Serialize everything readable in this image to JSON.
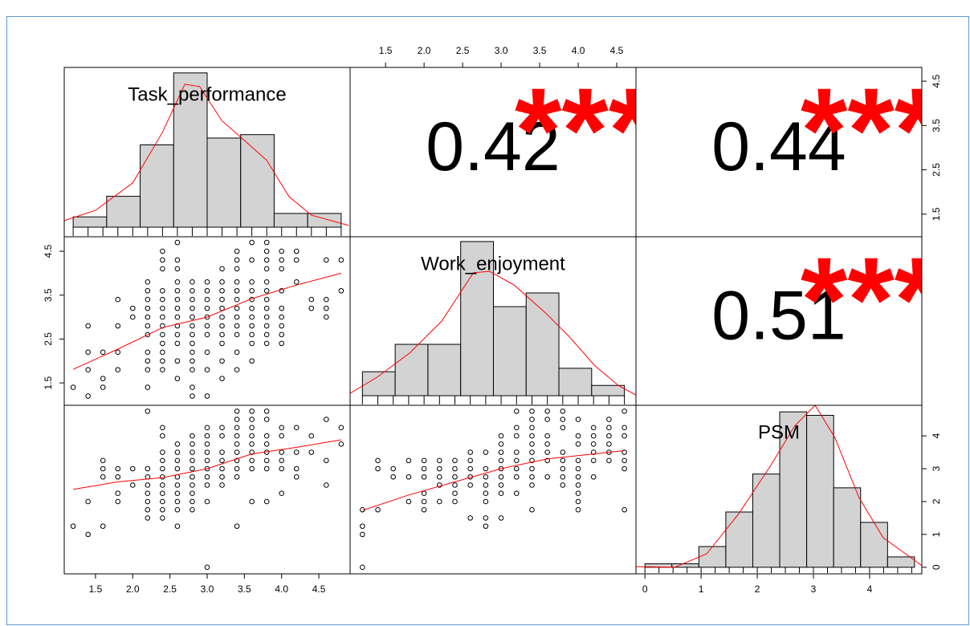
{
  "chart_data": {
    "type": "pairs",
    "variables": [
      "Task_performance",
      "Work_enjoyment",
      "PSM"
    ],
    "columns": [
      {
        "xlim": [
          1.08,
          4.92
        ],
        "axis": "bottom",
        "xticks": [
          1.5,
          {
            "value": 2,
            "label": "2.0"
          },
          2.5,
          {
            "value": 3,
            "label": "3.0"
          },
          3.5,
          {
            "value": 4,
            "label": "4.0"
          },
          4.5
        ]
      },
      {
        "xlim": [
          1.04,
          4.75
        ],
        "axis": "top",
        "xticks": [
          1.5,
          {
            "value": 2,
            "label": "2.0"
          },
          2.5,
          {
            "value": 3,
            "label": "3.0"
          },
          3.5,
          {
            "value": 4,
            "label": "4.0"
          },
          4.5
        ]
      },
      {
        "xlim": [
          -0.16,
          4.93
        ],
        "axis": "bottom",
        "xticks": [
          0,
          1,
          2,
          3,
          4
        ]
      }
    ],
    "rows": [
      {
        "ylim": [
          0.99,
          4.81
        ],
        "axis": "right",
        "yticks": [
          1.5,
          2.5,
          3.5,
          4.5
        ]
      },
      {
        "ylim": [
          0.99,
          4.83
        ],
        "axis": "left",
        "yticks": [
          1.5,
          2.5,
          3.5,
          4.5
        ]
      },
      {
        "ylim": [
          -0.2,
          4.93
        ],
        "axis": "right",
        "yticks": [
          0,
          1,
          2,
          3,
          4
        ]
      }
    ],
    "bar_color": "#d3d3d3",
    "line_color": "#ff0000",
    "star_color": "#ff0000",
    "panels": [
      {
        "type": "histogram",
        "bins": [
          1.2,
          1.65,
          2.1,
          2.55,
          3.0,
          3.45,
          3.9,
          4.35,
          4.8
        ],
        "counts": [
          3,
          9,
          24,
          45,
          26,
          27,
          4,
          4
        ],
        "count_lim": [
          -2.8,
          46.6
        ],
        "density": {
          "x": [
            1.08,
            1.5,
            2.0,
            2.4,
            2.7,
            2.9,
            3.2,
            3.5,
            3.8,
            4.1,
            4.4,
            4.9
          ],
          "y": [
            1.9,
            4.9,
            12.9,
            27.7,
            41.7,
            41,
            31,
            25.3,
            19.5,
            8.9,
            3.5,
            0.5
          ]
        },
        "rug": [
          1.2,
          1.4,
          1.6,
          1.8,
          2.0,
          2.2,
          2.4,
          2.6,
          2.8,
          3.0,
          3.2,
          3.4,
          3.6,
          3.8,
          4.0,
          4.2,
          4.4,
          4.6,
          4.8
        ]
      },
      {
        "type": "correlation",
        "value": 0.42,
        "stars": "***"
      },
      {
        "type": "correlation",
        "value": 0.44,
        "stars": "***"
      },
      {
        "type": "scatter",
        "x": [
          1.2,
          1.4,
          1.4,
          1.4,
          1.4,
          1.6,
          1.6,
          1.6,
          1.8,
          1.8,
          1.8,
          1.8,
          2.0,
          2.0,
          2.2,
          2.2,
          2.2,
          2.2,
          2.2,
          2.2,
          2.2,
          2.2,
          2.2,
          2.2,
          2.2,
          2.4,
          2.4,
          2.4,
          2.4,
          2.4,
          2.4,
          2.4,
          2.4,
          2.4,
          2.4,
          2.4,
          2.4,
          2.4,
          2.6,
          2.6,
          2.6,
          2.6,
          2.6,
          2.6,
          2.6,
          2.6,
          2.6,
          2.6,
          2.6,
          2.6,
          2.6,
          2.8,
          2.8,
          2.8,
          2.8,
          2.8,
          2.8,
          2.8,
          2.8,
          2.8,
          2.8,
          2.8,
          2.8,
          2.8,
          3.0,
          3.0,
          3.0,
          3.0,
          3.0,
          3.0,
          3.0,
          3.0,
          3.0,
          3.0,
          3.2,
          3.2,
          3.2,
          3.2,
          3.2,
          3.2,
          3.2,
          3.2,
          3.2,
          3.2,
          3.2,
          3.4,
          3.4,
          3.4,
          3.4,
          3.4,
          3.4,
          3.4,
          3.4,
          3.4,
          3.4,
          3.4,
          3.4,
          3.6,
          3.6,
          3.6,
          3.6,
          3.6,
          3.6,
          3.6,
          3.6,
          3.6,
          3.6,
          3.6,
          3.8,
          3.8,
          3.8,
          3.8,
          3.8,
          3.8,
          3.8,
          3.8,
          3.8,
          3.8,
          3.8,
          3.8,
          4.0,
          4.0,
          4.0,
          4.0,
          4.0,
          4.0,
          4.0,
          4.0,
          4.0,
          4.2,
          4.2,
          4.2,
          4.4,
          4.4,
          4.6,
          4.6,
          4.6,
          4.6,
          4.8,
          4.8
        ],
        "y": [
          1.4,
          2.8,
          2.2,
          1.8,
          1.2,
          2.2,
          1.6,
          1.4,
          3.4,
          2.8,
          2.2,
          1.8,
          3.2,
          3.0,
          3.8,
          3.6,
          3.4,
          3.2,
          3.0,
          2.8,
          2.6,
          2.2,
          2.0,
          1.8,
          1.4,
          4.5,
          4.3,
          4.1,
          3.6,
          3.4,
          3.2,
          3.0,
          2.8,
          2.6,
          2.4,
          2.2,
          2.0,
          1.8,
          4.7,
          4.3,
          4.1,
          3.8,
          3.6,
          3.4,
          3.2,
          3.0,
          2.8,
          2.6,
          2.4,
          2.0,
          1.6,
          3.8,
          3.6,
          3.4,
          3.2,
          3.0,
          2.8,
          2.6,
          2.4,
          2.2,
          2.0,
          1.8,
          1.4,
          1.2,
          3.8,
          3.6,
          3.4,
          3.2,
          3.0,
          2.8,
          2.6,
          2.2,
          1.8,
          1.2,
          4.1,
          3.8,
          3.6,
          3.4,
          3.2,
          3.0,
          2.8,
          2.6,
          2.4,
          2.0,
          1.6,
          4.5,
          4.3,
          4.1,
          3.8,
          3.6,
          3.4,
          3.2,
          3.0,
          2.8,
          2.6,
          2.2,
          1.8,
          4.7,
          4.3,
          3.8,
          3.6,
          3.4,
          3.2,
          3.0,
          2.8,
          2.6,
          2.4,
          2.0,
          4.7,
          4.5,
          4.3,
          4.1,
          3.8,
          3.6,
          3.4,
          3.2,
          3.0,
          2.8,
          2.6,
          2.4,
          4.5,
          4.3,
          4.1,
          3.6,
          3.2,
          3.0,
          2.8,
          2.6,
          2.4,
          4.5,
          4.3,
          3.8,
          3.4,
          3.2,
          4.3,
          3.4,
          3.2,
          3.0,
          4.3,
          3.6
        ],
        "fit": {
          "x": [
            1.2,
            1.8,
            2.4,
            3.0,
            3.6,
            4.2,
            4.8
          ],
          "y": [
            1.81,
            2.27,
            2.76,
            3.0,
            3.42,
            3.73,
            4.0
          ]
        }
      },
      {
        "type": "histogram",
        "bins": [
          1.2,
          1.625,
          2.05,
          2.475,
          2.9,
          3.325,
          3.75,
          4.175,
          4.6
        ],
        "counts": [
          7,
          15,
          15,
          45,
          26,
          30,
          8,
          3
        ],
        "count_lim": [
          -2.8,
          46.4
        ],
        "density": {
          "x": [
            1.04,
            1.39,
            1.81,
            2.23,
            2.64,
            2.85,
            3.17,
            3.58,
            3.89,
            4.21,
            4.52,
            4.75
          ],
          "y": [
            0.7,
            5.4,
            12.4,
            21.8,
            35.9,
            36.3,
            32.3,
            24.1,
            17.1,
            8.9,
            3,
            0.2
          ]
        },
        "rug": [
          1.2,
          1.4,
          1.6,
          1.8,
          2.0,
          2.2,
          2.4,
          2.6,
          2.8,
          3.0,
          3.2,
          3.4,
          3.6,
          3.8,
          4.0,
          4.2,
          4.4,
          4.6
        ]
      },
      {
        "type": "correlation",
        "value": 0.51,
        "stars": "***"
      },
      {
        "type": "scatter",
        "x": [
          1.2,
          1.4,
          1.4,
          1.6,
          1.6,
          1.6,
          1.6,
          1.8,
          1.8,
          1.8,
          1.8,
          2.0,
          2.0,
          2.2,
          2.2,
          2.2,
          2.2,
          2.2,
          2.2,
          2.2,
          2.2,
          2.4,
          2.4,
          2.4,
          2.4,
          2.4,
          2.4,
          2.4,
          2.4,
          2.4,
          2.4,
          2.4,
          2.6,
          2.6,
          2.6,
          2.6,
          2.6,
          2.6,
          2.6,
          2.6,
          2.6,
          2.6,
          2.8,
          2.8,
          2.8,
          2.8,
          2.8,
          2.8,
          2.8,
          2.8,
          2.8,
          2.8,
          3.0,
          3.0,
          3.0,
          3.0,
          3.0,
          3.0,
          3.0,
          3.0,
          3.0,
          3.0,
          3.2,
          3.2,
          3.2,
          3.2,
          3.2,
          3.2,
          3.2,
          3.4,
          3.4,
          3.4,
          3.4,
          3.4,
          3.4,
          3.4,
          3.4,
          3.4,
          3.4,
          3.6,
          3.6,
          3.6,
          3.6,
          3.6,
          3.6,
          3.6,
          3.6,
          3.6,
          3.8,
          3.8,
          3.8,
          3.8,
          3.8,
          3.8,
          3.8,
          3.8,
          4.0,
          4.0,
          4.0,
          4.0,
          4.0,
          4.0,
          4.2,
          4.2,
          4.2,
          4.2,
          4.4,
          4.4,
          4.6,
          4.6,
          4.6,
          4.8,
          4.8
        ],
        "y": [
          1.25,
          2.0,
          1.0,
          3.25,
          3.0,
          2.75,
          1.25,
          3.0,
          2.75,
          2.25,
          2.0,
          3.0,
          2.5,
          4.75,
          3.0,
          2.75,
          2.5,
          2.25,
          2.0,
          1.75,
          1.5,
          4.25,
          4.0,
          3.5,
          3.25,
          3.0,
          2.75,
          2.5,
          2.25,
          2.0,
          1.75,
          1.5,
          3.75,
          3.5,
          3.25,
          3.0,
          2.75,
          2.5,
          2.25,
          2.0,
          1.75,
          1.25,
          4.0,
          3.75,
          3.5,
          3.25,
          3.0,
          2.75,
          2.5,
          2.25,
          2.0,
          1.75,
          4.25,
          4.0,
          3.75,
          3.5,
          3.25,
          3.0,
          2.75,
          2.5,
          2.0,
          0,
          4.25,
          4.0,
          3.5,
          3.25,
          3.0,
          2.75,
          2.5,
          4.75,
          4.5,
          4.25,
          4.0,
          3.75,
          3.5,
          3.25,
          3.0,
          2.75,
          1.25,
          4.75,
          4.5,
          4.25,
          4.0,
          3.75,
          3.5,
          3.25,
          3.0,
          2.0,
          4.75,
          4.5,
          4.0,
          3.75,
          3.5,
          3.25,
          3.0,
          2.0,
          4.25,
          4.0,
          3.5,
          3.25,
          3.0,
          2.25,
          4.25,
          3.5,
          3.0,
          2.75,
          4.0,
          3.5,
          4.5,
          3.25,
          2.5,
          4.25,
          3.75
        ],
        "fit": {
          "x": [
            1.2,
            1.8,
            2.4,
            3.0,
            3.6,
            4.2,
            4.8
          ],
          "y": [
            2.37,
            2.6,
            2.73,
            3.0,
            3.45,
            3.65,
            3.88
          ]
        }
      },
      {
        "type": "scatter",
        "x": [
          1.2,
          1.2,
          1.2,
          1.2,
          1.4,
          1.4,
          1.4,
          1.6,
          1.6,
          1.8,
          1.8,
          1.8,
          2.0,
          2.0,
          2.0,
          2.0,
          2.0,
          2.0,
          2.2,
          2.2,
          2.2,
          2.2,
          2.2,
          2.4,
          2.4,
          2.4,
          2.4,
          2.4,
          2.4,
          2.6,
          2.6,
          2.6,
          2.6,
          2.6,
          2.6,
          2.8,
          2.8,
          2.8,
          2.8,
          2.8,
          2.8,
          2.8,
          2.8,
          3.0,
          3.0,
          3.0,
          3.0,
          3.0,
          3.0,
          3.0,
          3.0,
          3.0,
          3.2,
          3.2,
          3.2,
          3.2,
          3.2,
          3.2,
          3.2,
          3.2,
          3.4,
          3.4,
          3.4,
          3.4,
          3.4,
          3.4,
          3.4,
          3.4,
          3.4,
          3.4,
          3.4,
          3.6,
          3.6,
          3.6,
          3.6,
          3.6,
          3.6,
          3.6,
          3.8,
          3.8,
          3.8,
          3.8,
          3.8,
          3.8,
          3.8,
          3.8,
          4.0,
          4.0,
          4.0,
          4.0,
          4.0,
          4.0,
          4.0,
          4.0,
          4.0,
          4.0,
          4.2,
          4.2,
          4.2,
          4.2,
          4.2,
          4.2,
          4.4,
          4.4,
          4.4,
          4.4,
          4.4,
          4.4,
          4.6,
          4.6,
          4.6,
          4.6,
          4.6,
          4.6,
          4.6
        ],
        "y": [
          1.75,
          1.25,
          1.0,
          0,
          3.25,
          3.0,
          1.75,
          3.0,
          2.75,
          3.25,
          2.75,
          2.0,
          3.25,
          3.0,
          2.75,
          2.25,
          2.0,
          1.75,
          3.25,
          3.0,
          2.75,
          2.5,
          2.0,
          3.25,
          3.0,
          2.75,
          2.5,
          2.25,
          2.0,
          3.5,
          3.25,
          3.0,
          2.75,
          2.5,
          1.5,
          3.5,
          3.0,
          2.75,
          2.5,
          2.25,
          2.0,
          1.5,
          1.25,
          4.0,
          3.75,
          3.5,
          3.25,
          3.0,
          2.75,
          2.5,
          2.25,
          1.5,
          4.75,
          4.25,
          4.0,
          3.5,
          3.25,
          3.0,
          2.75,
          2.25,
          4.75,
          4.5,
          4.25,
          4.0,
          3.75,
          3.5,
          3.25,
          3.0,
          2.75,
          2.5,
          1.75,
          4.75,
          4.5,
          4.0,
          3.75,
          3.5,
          3.25,
          2.75,
          4.75,
          4.5,
          4.25,
          3.5,
          3.25,
          3.0,
          2.75,
          2.5,
          4.5,
          4.0,
          3.75,
          3.25,
          3.0,
          2.75,
          2.5,
          2.25,
          2.0,
          1.75,
          4.25,
          4.0,
          3.75,
          3.5,
          3.25,
          2.75,
          4.5,
          4.25,
          4.0,
          3.75,
          3.5,
          3.25,
          4.75,
          4.25,
          4.0,
          3.5,
          3.25,
          3.0,
          1.75
        ],
        "fit": {
          "x": [
            1.2,
            1.8,
            2.4,
            3.0,
            3.6,
            4.2,
            4.6
          ],
          "y": [
            1.73,
            2.2,
            2.6,
            3.0,
            3.3,
            3.45,
            3.55
          ]
        }
      },
      {
        "type": "histogram",
        "bins": [
          0.0,
          0.48,
          0.96,
          1.44,
          1.92,
          2.4,
          2.88,
          3.36,
          3.84,
          4.32,
          4.8
        ],
        "counts": [
          1,
          1,
          6,
          16,
          27,
          45,
          44,
          23,
          13,
          3
        ],
        "count_lim": [
          -1.9,
          46.9
        ],
        "density": {
          "x": [
            -0.16,
            0.53,
            1.1,
            1.67,
            2.24,
            2.67,
            3.03,
            3.38,
            3.81,
            4.24,
            4.93
          ],
          "y": [
            0.2,
            0,
            3.9,
            15.5,
            29.5,
            41,
            46.9,
            37.6,
            20.2,
            8.6,
            0.5
          ]
        },
        "rug": [
          0,
          0.25,
          0.5,
          0.75,
          1.0,
          1.25,
          1.5,
          1.75,
          2.0,
          2.25,
          2.5,
          2.75,
          3.0,
          3.25,
          3.5,
          3.75,
          4.0,
          4.25,
          4.5,
          4.75
        ]
      }
    ]
  }
}
